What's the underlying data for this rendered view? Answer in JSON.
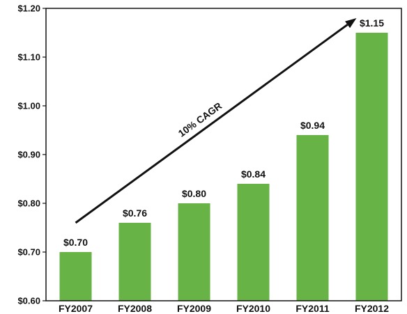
{
  "chart_data": {
    "type": "bar",
    "categories": [
      "FY2007",
      "FY2008",
      "FY2009",
      "FY2010",
      "FY2011",
      "FY2012"
    ],
    "values": [
      0.7,
      0.76,
      0.8,
      0.84,
      0.94,
      1.15
    ],
    "value_labels": [
      "$0.70",
      "$0.76",
      "$0.80",
      "$0.84",
      "$0.94",
      "$1.15"
    ],
    "ylim": [
      0.6,
      1.2
    ],
    "yticks": [
      0.6,
      0.7,
      0.8,
      0.9,
      1.0,
      1.1,
      1.2
    ],
    "ytick_labels": [
      "$0.60",
      "$0.70",
      "$0.80",
      "$0.90",
      "$1.00",
      "$1.10",
      "$1.20"
    ],
    "title": "",
    "xlabel": "",
    "ylabel": "",
    "grid": false,
    "bar_color": "#67b346",
    "annotation": {
      "text": "10% CAGR",
      "from_category": "FY2007",
      "from_value": 0.76,
      "to_category": "FY2012",
      "to_value": 1.18
    }
  }
}
